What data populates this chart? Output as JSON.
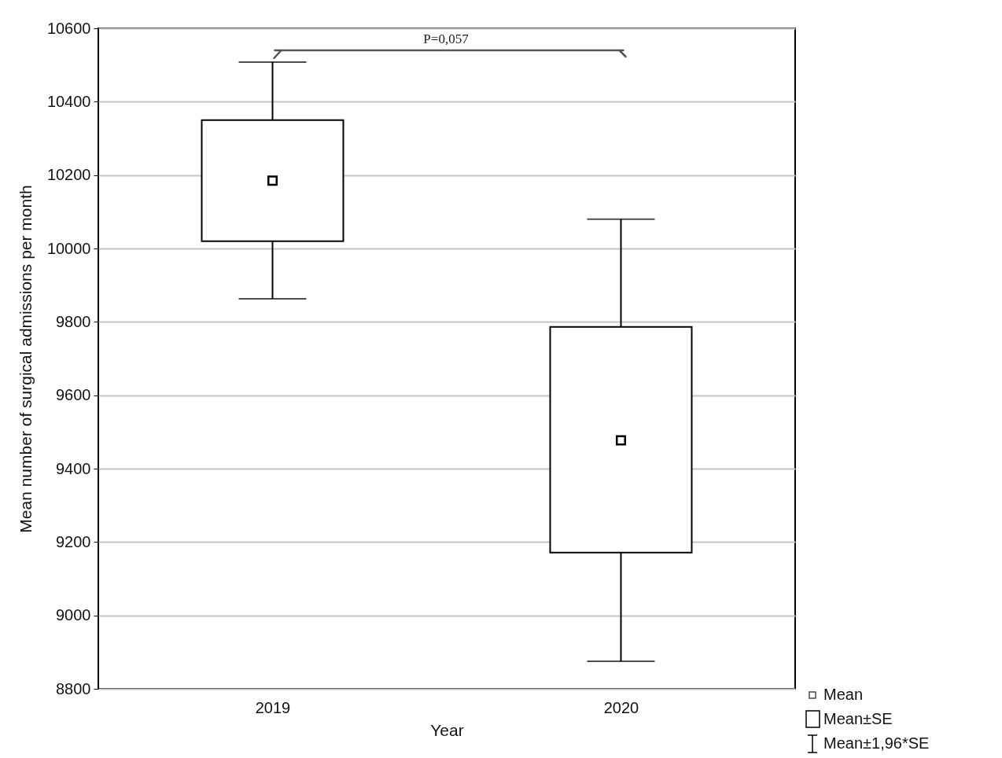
{
  "chart_data": {
    "type": "box",
    "xlabel": "Year",
    "ylabel": "Mean number of surgical admissions per month",
    "categories": [
      "2019",
      "2020"
    ],
    "boxes": [
      {
        "low": 9863,
        "q1": 10020,
        "median": 10185,
        "q3": 10350,
        "high": 10508
      },
      {
        "low": 8875,
        "q1": 9171,
        "median": 9477,
        "q3": 9786,
        "high": 10080
      }
    ],
    "ylim": [
      8800,
      10600
    ],
    "yticks": [
      8800,
      9000,
      9200,
      9400,
      9600,
      9800,
      10000,
      10200,
      10400,
      10600
    ],
    "grid": "y",
    "marker": "square",
    "annotations": [
      "P=0,057",
      "Mean",
      "Mean±SE",
      "Mean±1,96*SE"
    ]
  }
}
